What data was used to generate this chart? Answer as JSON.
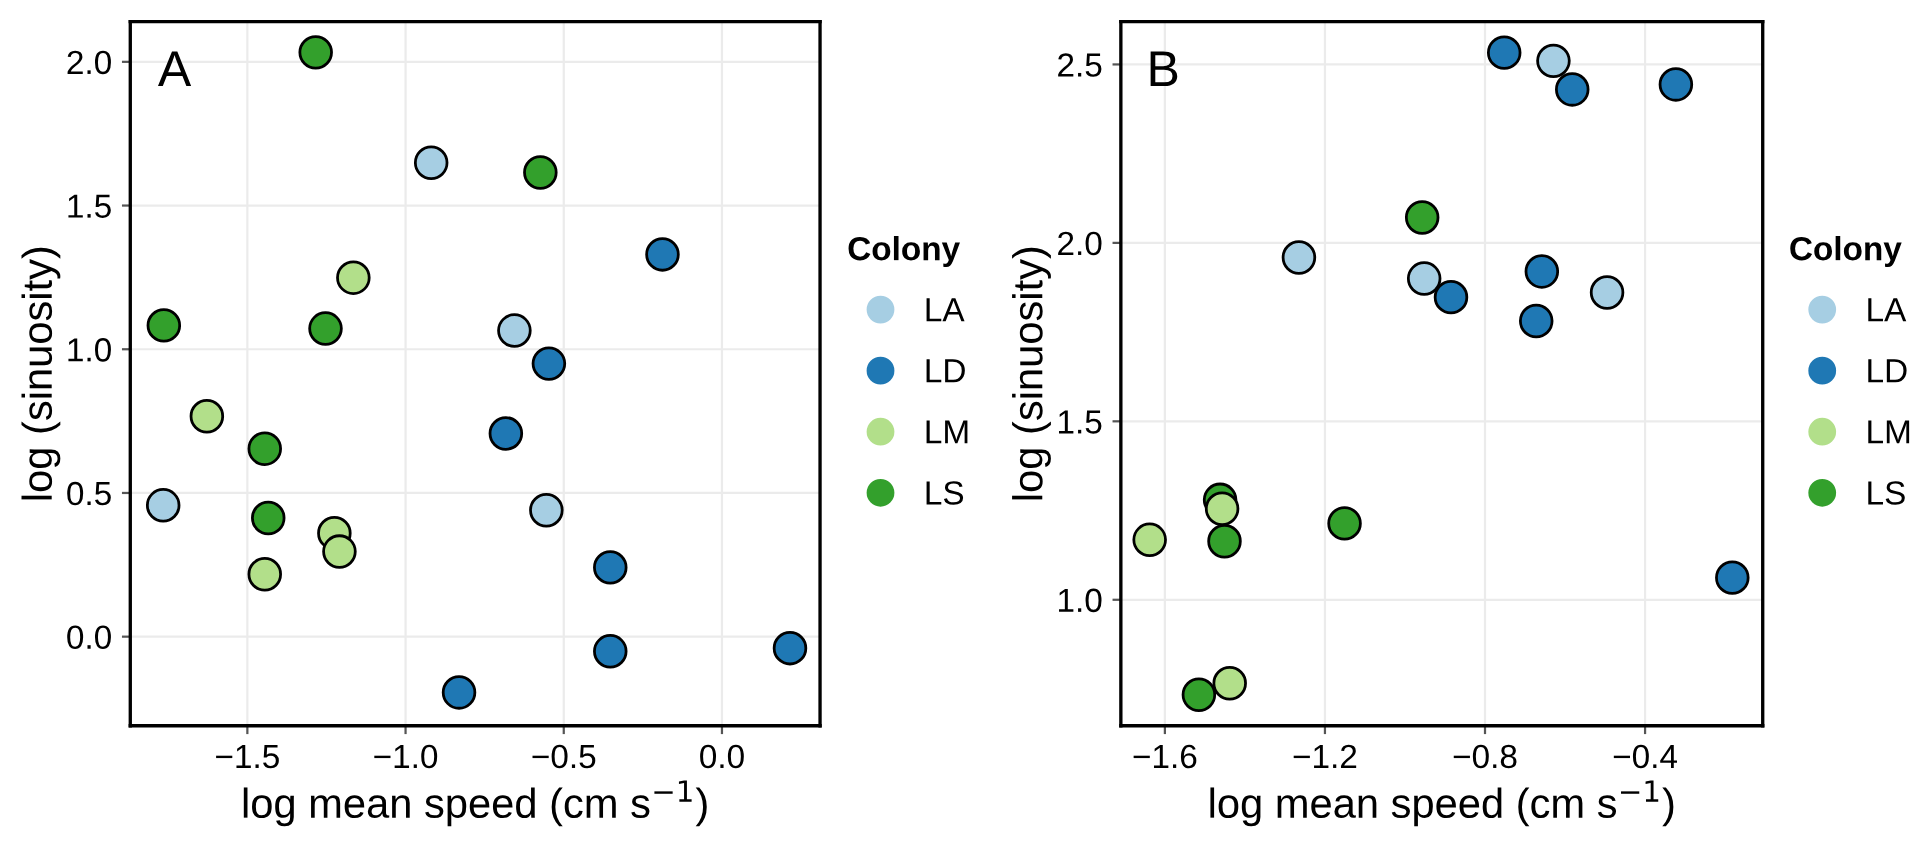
{
  "chart_data": [
    {
      "type": "scatter",
      "title": "A",
      "xlabel": "log mean speed (cm s$^{−1}$)",
      "ylabel": "log (sinuosity)",
      "legend_title": "Colony",
      "legend": "right",
      "grid": true,
      "marker": "circle",
      "xlim": [
        -1.87,
        0.31
      ],
      "xticks": [
        {
          "value": -1.5,
          "label": "−1.5"
        },
        {
          "value": -1.0,
          "label": "−1.0"
        },
        {
          "value": -0.5,
          "label": "−0.5"
        },
        {
          "value": 0.0,
          "label": "0.0"
        }
      ],
      "ylim": [
        -0.31,
        2.14
      ],
      "yticks": [
        {
          "value": 0.0,
          "label": "0.0"
        },
        0.5,
        {
          "value": 1.0,
          "label": "1.0"
        },
        1.5,
        {
          "value": 2.0,
          "label": "2.0"
        }
      ],
      "series": [
        {
          "name": "LA",
          "color": "#a6cee3",
          "x": [
            -0.919,
            -0.656,
            -1.766,
            -0.555
          ],
          "values": [
            1.649,
            1.065,
            0.457,
            0.44
          ]
        },
        {
          "name": "LD",
          "color": "#1f78b4",
          "x": [
            -0.188,
            -0.547,
            -0.683,
            -0.353,
            -0.353,
            0.215,
            -0.831
          ],
          "values": [
            1.33,
            0.95,
            0.707,
            0.241,
            -0.051,
            -0.04,
            -0.194
          ]
        },
        {
          "name": "LM",
          "color": "#b2df8a",
          "x": [
            -1.165,
            -1.628,
            -1.225,
            -1.209,
            -1.445
          ],
          "values": [
            1.249,
            0.767,
            0.36,
            0.296,
            0.217
          ]
        },
        {
          "name": "LS",
          "color": "#33a02c",
          "x": [
            -1.284,
            -0.574,
            -1.764,
            -1.253,
            -1.445,
            -1.434
          ],
          "values": [
            2.033,
            1.615,
            1.083,
            1.072,
            0.654,
            0.413
          ]
        }
      ]
    },
    {
      "type": "scatter",
      "title": "B",
      "xlabel": "log mean speed (cm s$^{−1}$)",
      "ylabel": "log (sinuosity)",
      "legend_title": "Colony",
      "legend": "right",
      "grid": true,
      "marker": "circle",
      "xlim": [
        -1.71,
        -0.106
      ],
      "xticks": [
        {
          "value": -1.6,
          "label": "−1.6"
        },
        {
          "value": -1.2,
          "label": "−1.2"
        },
        {
          "value": -0.8,
          "label": "−0.8"
        },
        {
          "value": -0.4,
          "label": "−0.4"
        }
      ],
      "ylim": [
        0.647,
        2.62
      ],
      "yticks": [
        {
          "value": 1.0,
          "label": "1.0"
        },
        1.5,
        {
          "value": 2.0,
          "label": "2.0"
        },
        2.5
      ],
      "series": [
        {
          "name": "LA",
          "color": "#a6cee3",
          "x": [
            -0.629,
            -1.265,
            -0.952,
            -0.495
          ],
          "values": [
            2.51,
            1.959,
            1.9,
            1.861
          ]
        },
        {
          "name": "LD",
          "color": "#1f78b4",
          "x": [
            -0.752,
            -0.582,
            -0.323,
            -0.658,
            -0.885,
            -0.672,
            -0.182
          ],
          "values": [
            2.533,
            2.43,
            2.444,
            1.92,
            1.848,
            1.781,
            1.062
          ]
        },
        {
          "name": "LM",
          "color": "#b2df8a",
          "x": [
            -1.638,
            -1.457,
            -1.438
          ],
          "values": [
            1.168,
            1.255,
            0.766
          ]
        },
        {
          "name": "LS",
          "color": "#33a02c",
          "x": [
            -0.957,
            -1.462,
            -1.451,
            -1.151,
            -1.515
          ],
          "values": [
            2.071,
            1.28,
            1.164,
            1.214,
            0.734
          ]
        }
      ]
    }
  ]
}
